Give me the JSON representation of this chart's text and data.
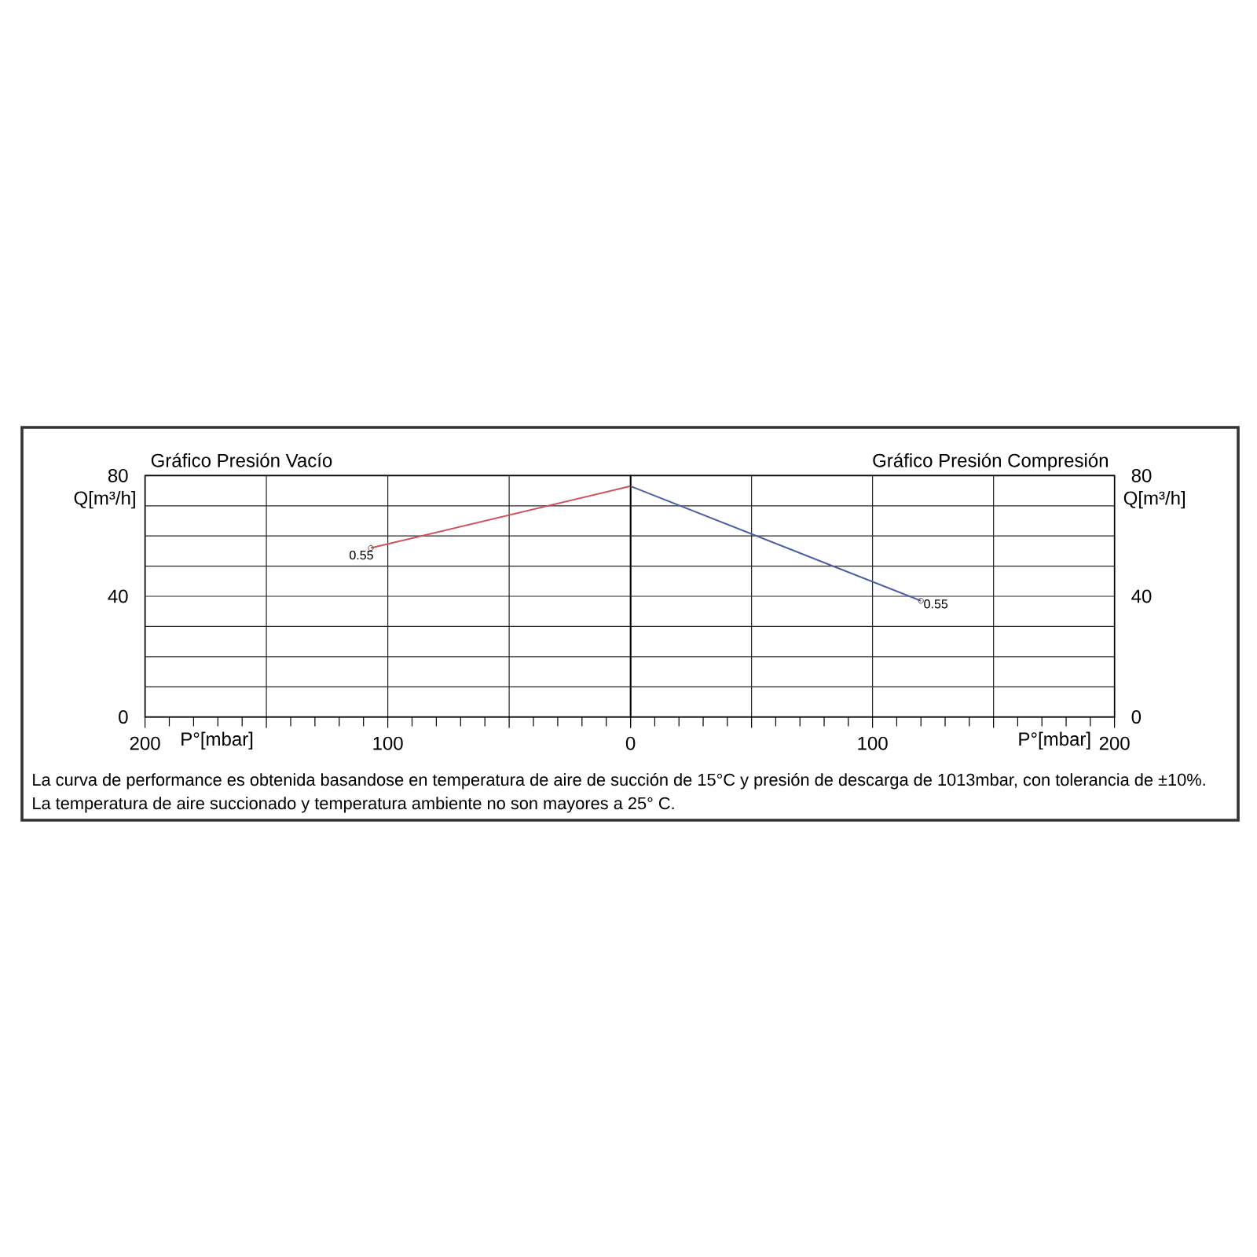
{
  "chart_data": [
    {
      "type": "line",
      "title": "Gráfico Presión Vacío",
      "xlabel": "P°[mbar]",
      "ylabel": "Q[m³/h]",
      "xlim": [
        200,
        0
      ],
      "xticks": [
        200,
        {
          "value": 150,
          "label": null
        },
        100,
        {
          "value": 50,
          "label": null
        },
        0
      ],
      "ylim": [
        0,
        80
      ],
      "yticks": [
        0,
        {
          "value": 10,
          "label": null
        },
        {
          "value": 20,
          "label": null
        },
        {
          "value": 30,
          "label": null
        },
        40,
        {
          "value": 50,
          "label": null
        },
        {
          "value": 60,
          "label": null
        },
        {
          "value": 70,
          "label": null
        },
        80
      ],
      "grid": true,
      "series": [
        {
          "color": "#d0505a",
          "x": [
            107,
            0
          ],
          "values": [
            56,
            76.5
          ]
        }
      ],
      "annotations": [
        {
          "text": "0.55",
          "x": 107,
          "y": 56
        },
        "La curva de performance es obtenida basandose en temperatura de aire de succión de 15°C y presión de descarga de 1013mbar, con tolerancia de ±10%.",
        "La temperatura de aire succionado y temperatura ambiente no son mayores a 25° C."
      ]
    },
    {
      "type": "line",
      "title": "Gráfico Presión Compresión",
      "xlabel": "P°[mbar]",
      "ylabel": "Q[m³/h]",
      "xlim": [
        0,
        200
      ],
      "xticks": [
        {
          "value": 0,
          "label": null
        },
        {
          "value": 50,
          "label": null
        },
        100,
        {
          "value": 150,
          "label": null
        },
        200
      ],
      "ylim": [
        0,
        80
      ],
      "yticks": [
        0,
        {
          "value": 10,
          "label": null
        },
        {
          "value": 20,
          "label": null
        },
        {
          "value": 30,
          "label": null
        },
        40,
        {
          "value": 50,
          "label": null
        },
        {
          "value": 60,
          "label": null
        },
        {
          "value": 70,
          "label": null
        },
        80
      ],
      "grid": true,
      "series": [
        {
          "color": "#4a5fa5",
          "x": [
            0,
            120
          ],
          "values": [
            76.5,
            38.5
          ]
        }
      ],
      "annotations": [
        {
          "text": "0.55",
          "x": 120,
          "y": 38.5
        }
      ]
    }
  ]
}
